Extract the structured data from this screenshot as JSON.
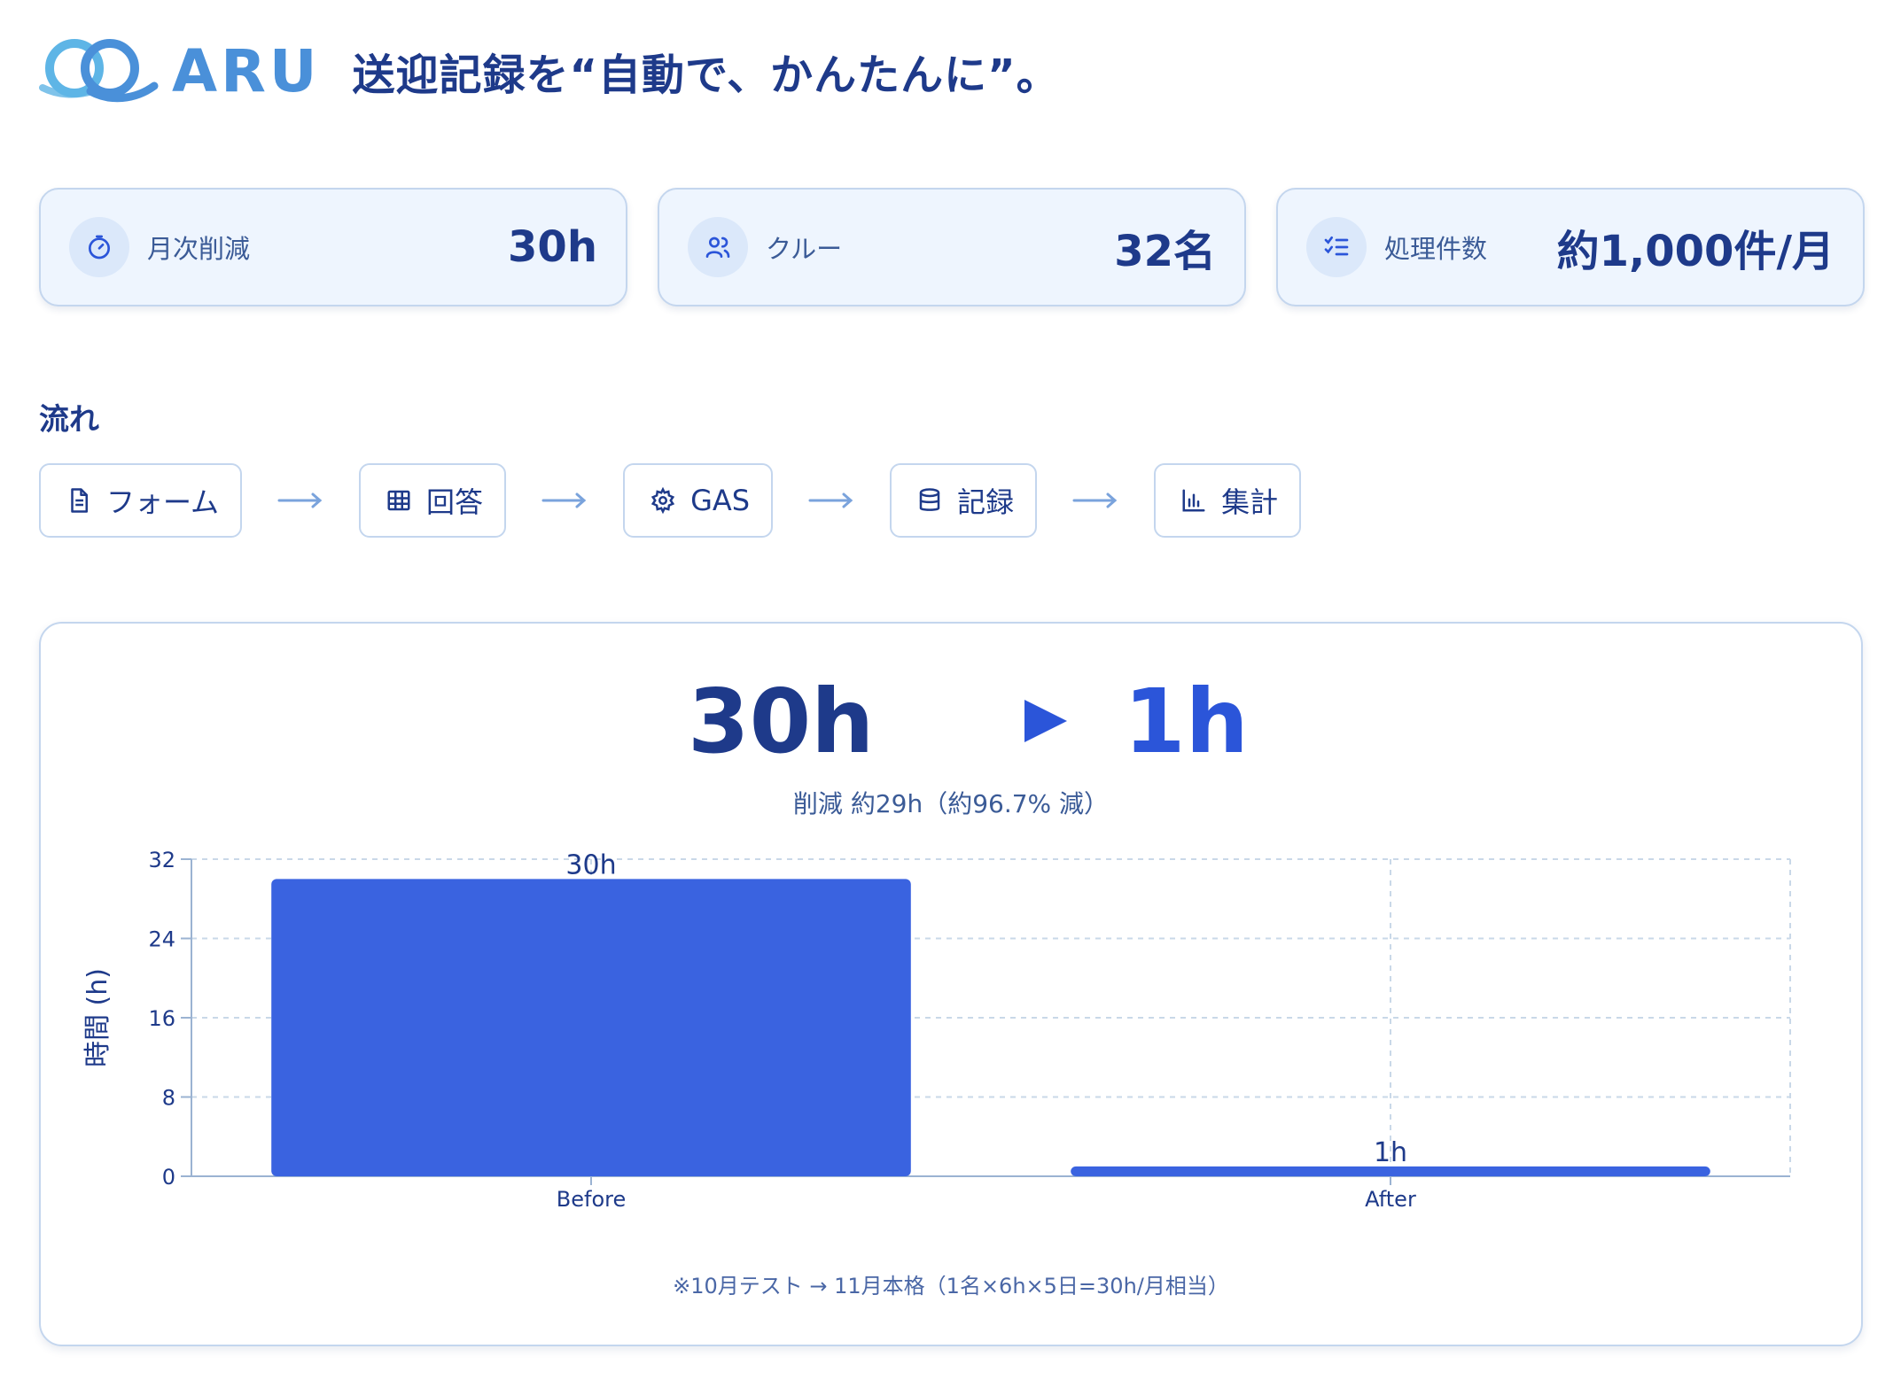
{
  "header": {
    "brand": "ARU",
    "tagline": "送迎記録を“自動で、かんたんに”。",
    "logo_icon": "aru-loop-logo-icon"
  },
  "stats": [
    {
      "icon": "stopwatch-icon",
      "label": "月次削減",
      "value": "30h"
    },
    {
      "icon": "users-icon",
      "label": "クルー",
      "value": "32名"
    },
    {
      "icon": "checklist-icon",
      "label": "処理件数",
      "value": "約1,000件/月"
    }
  ],
  "flow": {
    "title": "流れ",
    "steps": [
      {
        "icon": "document-icon",
        "label": "フォーム"
      },
      {
        "icon": "table-icon",
        "label": "回答"
      },
      {
        "icon": "gear-icon",
        "label": "GAS"
      },
      {
        "icon": "database-icon",
        "label": "記録"
      },
      {
        "icon": "bar-chart-icon",
        "label": "集計"
      }
    ]
  },
  "comparison": {
    "before": "30h",
    "after": "1h",
    "reduction": "削減 約29h（約96.7% 減）"
  },
  "chart_data": {
    "type": "bar",
    "categories": [
      "Before",
      "After"
    ],
    "values": [
      30,
      1
    ],
    "data_labels": [
      "30h",
      "1h"
    ],
    "ylabel": "時間 (h)",
    "ylim": [
      0,
      32
    ],
    "yticks": [
      0,
      8,
      16,
      24,
      32
    ],
    "grid": true,
    "bar_color": "#3a63e0"
  },
  "note": "※10月テスト → 11月本格（1名×6h×5日=30h/月相当）",
  "colors": {
    "primary": "#1e3a8a",
    "accent": "#2b55d9",
    "brand": "#4a90d9",
    "card_bg": "#eef5fe",
    "border": "#c4d6ee"
  }
}
